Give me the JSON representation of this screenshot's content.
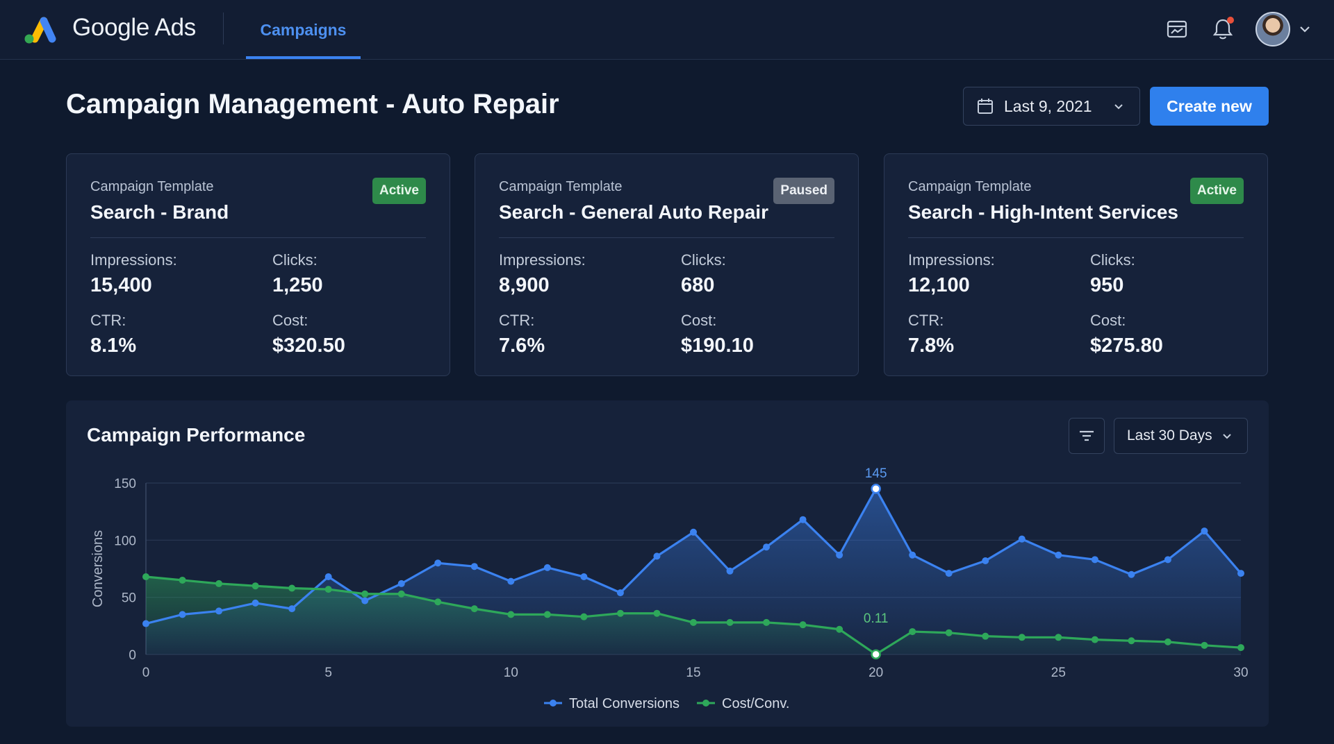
{
  "app": {
    "brand": "Google Ads",
    "tab_label": "Campaigns",
    "accent": "#3b82f0"
  },
  "header": {
    "title": "Campaign Management - Auto Repair",
    "date_range": "Last 9, 2021",
    "create_label": "Create new"
  },
  "cards": [
    {
      "subtitle": "Campaign Template",
      "name": "Search - Brand",
      "status": "Active",
      "impressions_label": "Impressions:",
      "impressions": "15,400",
      "clicks_label": "Clicks:",
      "clicks": "1,250",
      "ctr_label": "CTR:",
      "ctr": "8.1%",
      "cost_label": "Cost:",
      "cost": "$320.50"
    },
    {
      "subtitle": "Campaign Template",
      "name": "Search - General Auto Repair",
      "status": "Paused",
      "impressions_label": "Impressions:",
      "impressions": "8,900",
      "clicks_label": "Clicks:",
      "clicks": "680",
      "ctr_label": "CTR:",
      "ctr": "7.6%",
      "cost_label": "Cost:",
      "cost": "$190.10"
    },
    {
      "subtitle": "Campaign Template",
      "name": "Search - High-Intent Services",
      "status": "Active",
      "impressions_label": "Impressions:",
      "impressions": "12,100",
      "clicks_label": "Clicks:",
      "clicks": "950",
      "ctr_label": "CTR:",
      "ctr": "7.8%",
      "cost_label": "Cost:",
      "cost": "$275.80"
    }
  ],
  "performance": {
    "title": "Campaign Performance",
    "range_label": "Last 30 Days"
  },
  "chart_data": {
    "type": "line",
    "title": "",
    "xlabel": "",
    "ylabel": "Conversions",
    "xlim": [
      0,
      30
    ],
    "ylim": [
      0,
      150
    ],
    "x_ticks": [
      0,
      5,
      10,
      15,
      20,
      25,
      30
    ],
    "y_ticks": [
      0,
      50,
      100,
      150
    ],
    "grid": true,
    "legend_position": "bottom-center",
    "x": [
      0,
      1,
      2,
      3,
      4,
      5,
      6,
      7,
      8,
      9,
      10,
      11,
      12,
      13,
      14,
      15,
      16,
      17,
      18,
      19,
      20,
      21,
      22,
      23,
      24,
      25,
      26,
      27,
      28,
      29,
      30
    ],
    "series": [
      {
        "name": "Total Conversions",
        "color": "#3b82f0",
        "values": [
          27,
          35,
          38,
          45,
          40,
          68,
          47,
          62,
          80,
          77,
          64,
          76,
          68,
          54,
          86,
          107,
          73,
          94,
          118,
          87,
          145,
          87,
          71,
          82,
          101,
          87,
          83,
          70,
          83,
          108,
          71
        ]
      },
      {
        "name": "Cost/Conv.",
        "color": "#2ea85a",
        "values": [
          68,
          65,
          62,
          60,
          58,
          57,
          53,
          53,
          46,
          40,
          35,
          35,
          33,
          36,
          36,
          28,
          28,
          28,
          26,
          22,
          0.11,
          20,
          19,
          16,
          15,
          15,
          13,
          12,
          11,
          8,
          6
        ]
      }
    ],
    "annotations": [
      {
        "series": "Total Conversions",
        "x": 20,
        "label": "145"
      },
      {
        "series": "Cost/Conv.",
        "x": 20,
        "label": "0.11"
      }
    ]
  }
}
